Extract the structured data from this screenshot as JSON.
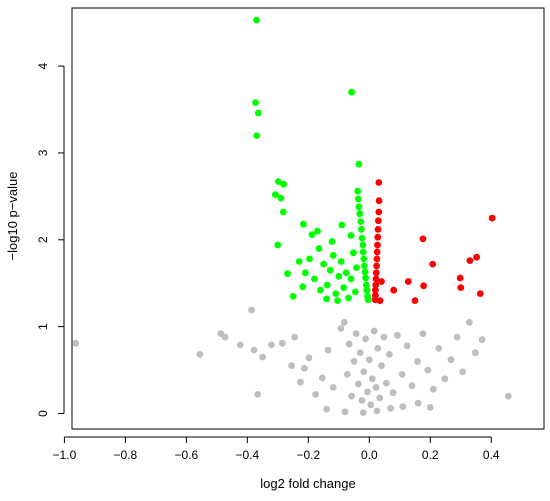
{
  "chart_data": {
    "type": "scatter",
    "title": "",
    "xlabel": "log2 fold change",
    "ylabel": "−log10 p−value",
    "xlim": [
      -1.0,
      0.45
    ],
    "ylim": [
      0,
      4.6
    ],
    "x_ticks": [
      -1.0,
      -0.8,
      -0.6,
      -0.4,
      -0.2,
      0.0,
      0.2,
      0.4
    ],
    "x_tick_labels": [
      "−1.0",
      "−0.8",
      "−0.6",
      "−0.4",
      "−0.2",
      "0.0",
      "0.2",
      "0.4"
    ],
    "y_ticks": [
      0,
      1,
      2,
      3,
      4
    ],
    "y_tick_labels": [
      "0",
      "1",
      "2",
      "3",
      "4"
    ],
    "grid": false,
    "legend": "none",
    "series": [
      {
        "color": "#bebebe",
        "points": [
          [
            -0.963,
            0.81
          ],
          [
            -0.556,
            0.68
          ],
          [
            -0.487,
            0.92
          ],
          [
            -0.473,
            0.88
          ],
          [
            -0.423,
            0.79
          ],
          [
            -0.386,
            1.19
          ],
          [
            -0.378,
            0.73
          ],
          [
            -0.366,
            0.22
          ],
          [
            -0.35,
            0.65
          ],
          [
            -0.321,
            0.79
          ],
          [
            -0.285,
            0.81
          ],
          [
            -0.255,
            0.55
          ],
          [
            -0.245,
            0.88
          ],
          [
            -0.226,
            0.36
          ],
          [
            -0.213,
            0.52
          ],
          [
            -0.198,
            0.64
          ],
          [
            -0.176,
            0.22
          ],
          [
            -0.154,
            0.41
          ],
          [
            -0.135,
            0.73
          ],
          [
            -0.118,
            0.3
          ],
          [
            -0.093,
            0.98
          ],
          [
            -0.082,
            1.05
          ],
          [
            -0.072,
            0.45
          ],
          [
            -0.066,
            0.8
          ],
          [
            -0.058,
            0.2
          ],
          [
            -0.05,
            0.6
          ],
          [
            -0.043,
            0.92
          ],
          [
            -0.036,
            0.34
          ],
          [
            -0.03,
            0.7
          ],
          [
            -0.024,
            0.15
          ],
          [
            -0.018,
            0.48
          ],
          [
            -0.012,
            0.86
          ],
          [
            -0.006,
            0.25
          ],
          [
            0.0,
            0.62
          ],
          [
            0.005,
            0.1
          ],
          [
            0.01,
            0.4
          ],
          [
            0.016,
            0.95
          ],
          [
            0.022,
            0.3
          ],
          [
            0.028,
            0.75
          ],
          [
            0.034,
            0.18
          ],
          [
            0.04,
            0.55
          ],
          [
            0.048,
            0.88
          ],
          [
            0.056,
            0.35
          ],
          [
            0.066,
            0.68
          ],
          [
            0.078,
            0.24
          ],
          [
            0.092,
            0.9
          ],
          [
            0.108,
            0.45
          ],
          [
            0.124,
            0.78
          ],
          [
            0.14,
            0.32
          ],
          [
            0.158,
            0.6
          ],
          [
            0.176,
            0.92
          ],
          [
            0.192,
            0.5
          ],
          [
            0.21,
            0.28
          ],
          [
            0.228,
            0.75
          ],
          [
            0.248,
            0.4
          ],
          [
            0.268,
            0.62
          ],
          [
            0.288,
            0.88
          ],
          [
            0.306,
            0.48
          ],
          [
            0.328,
            1.05
          ],
          [
            0.348,
            0.7
          ],
          [
            0.37,
            0.85
          ],
          [
            0.456,
            0.2
          ],
          [
            -0.14,
            0.05
          ],
          [
            -0.08,
            0.02
          ],
          [
            -0.02,
            0.01
          ],
          [
            0.025,
            0.03
          ],
          [
            0.07,
            0.06
          ],
          [
            0.11,
            0.08
          ],
          [
            0.16,
            0.12
          ],
          [
            0.2,
            0.07
          ]
        ]
      },
      {
        "color": "#00ff00",
        "points": [
          [
            -0.37,
            4.53
          ],
          [
            -0.373,
            3.58
          ],
          [
            -0.364,
            3.46
          ],
          [
            -0.369,
            3.2
          ],
          [
            -0.058,
            3.7
          ],
          [
            -0.034,
            2.87
          ],
          [
            -0.298,
            2.67
          ],
          [
            -0.281,
            2.64
          ],
          [
            -0.308,
            2.52
          ],
          [
            -0.29,
            2.48
          ],
          [
            -0.282,
            2.32
          ],
          [
            -0.216,
            2.18
          ],
          [
            -0.188,
            2.06
          ],
          [
            -0.17,
            2.1
          ],
          [
            -0.09,
            2.17
          ],
          [
            -0.06,
            2.05
          ],
          [
            -0.038,
            2.56
          ],
          [
            -0.036,
            2.47
          ],
          [
            -0.034,
            2.38
          ],
          [
            -0.031,
            2.3
          ],
          [
            -0.028,
            2.21
          ],
          [
            -0.026,
            2.12
          ],
          [
            -0.024,
            2.02
          ],
          [
            -0.021,
            1.94
          ],
          [
            -0.02,
            1.86
          ],
          [
            -0.018,
            1.78
          ],
          [
            -0.016,
            1.7
          ],
          [
            -0.014,
            1.63
          ],
          [
            -0.012,
            1.56
          ],
          [
            -0.01,
            1.48
          ],
          [
            -0.008,
            1.42
          ],
          [
            -0.006,
            1.35
          ],
          [
            -0.004,
            1.31
          ],
          [
            -0.3,
            1.94
          ],
          [
            -0.268,
            1.61
          ],
          [
            -0.25,
            1.35
          ],
          [
            -0.218,
            1.46
          ],
          [
            -0.196,
            1.78
          ],
          [
            -0.18,
            1.55
          ],
          [
            -0.165,
            1.9
          ],
          [
            -0.15,
            1.72
          ],
          [
            -0.138,
            1.48
          ],
          [
            -0.128,
            1.65
          ],
          [
            -0.118,
            1.82
          ],
          [
            -0.11,
            1.38
          ],
          [
            -0.1,
            1.58
          ],
          [
            -0.092,
            1.75
          ],
          [
            -0.084,
            1.45
          ],
          [
            -0.076,
            1.62
          ],
          [
            -0.068,
            1.33
          ],
          [
            -0.06,
            1.55
          ],
          [
            -0.052,
            1.85
          ],
          [
            -0.046,
            1.4
          ],
          [
            -0.042,
            1.68
          ],
          [
            -0.14,
            1.32
          ],
          [
            -0.122,
            1.98
          ],
          [
            -0.104,
            1.3
          ],
          [
            -0.21,
            1.62
          ],
          [
            -0.23,
            1.75
          ],
          [
            -0.16,
            1.42
          ]
        ]
      },
      {
        "color": "#ff0000",
        "points": [
          [
            0.031,
            2.66
          ],
          [
            0.032,
            2.45
          ],
          [
            0.031,
            2.32
          ],
          [
            0.03,
            2.22
          ],
          [
            0.029,
            2.12
          ],
          [
            0.028,
            2.03
          ],
          [
            0.027,
            1.94
          ],
          [
            0.026,
            1.86
          ],
          [
            0.025,
            1.78
          ],
          [
            0.024,
            1.7
          ],
          [
            0.023,
            1.62
          ],
          [
            0.022,
            1.55
          ],
          [
            0.021,
            1.48
          ],
          [
            0.02,
            1.42
          ],
          [
            0.02,
            1.36
          ],
          [
            0.019,
            1.31
          ],
          [
            0.035,
            1.3
          ],
          [
            0.04,
            1.52
          ],
          [
            0.08,
            1.42
          ],
          [
            0.128,
            1.52
          ],
          [
            0.15,
            1.3
          ],
          [
            0.176,
            2.01
          ],
          [
            0.178,
            1.47
          ],
          [
            0.208,
            1.72
          ],
          [
            0.298,
            1.56
          ],
          [
            0.3,
            1.45
          ],
          [
            0.33,
            1.76
          ],
          [
            0.352,
            1.8
          ],
          [
            0.364,
            1.38
          ],
          [
            0.403,
            2.25
          ]
        ]
      }
    ]
  }
}
